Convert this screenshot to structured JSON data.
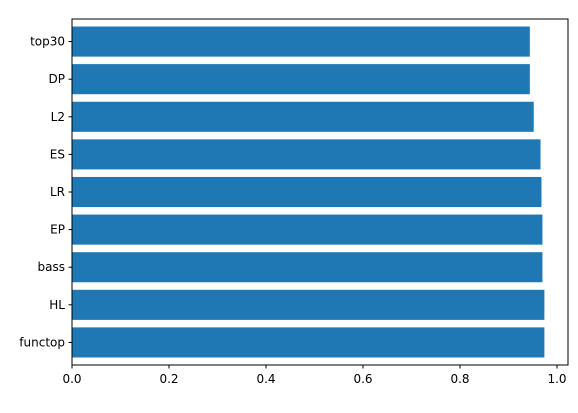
{
  "chart_data": {
    "type": "bar",
    "orientation": "horizontal",
    "categories": [
      "functop",
      "HL",
      "bass",
      "EP",
      "LR",
      "ES",
      "L2",
      "DP",
      "top30"
    ],
    "values": [
      0.974,
      0.974,
      0.97,
      0.97,
      0.968,
      0.966,
      0.952,
      0.944,
      0.944
    ],
    "xlim": [
      0,
      1.0227
    ],
    "x_ticks": [
      0.0,
      0.2,
      0.4,
      0.6,
      0.8,
      1.0
    ],
    "x_tick_labels": [
      "0.0",
      "0.2",
      "0.4",
      "0.6",
      "0.8",
      "1.0"
    ],
    "title": "",
    "xlabel": "",
    "ylabel": "",
    "grid": false,
    "bar_color": "#1f77b4",
    "axis_color": "#000000"
  }
}
